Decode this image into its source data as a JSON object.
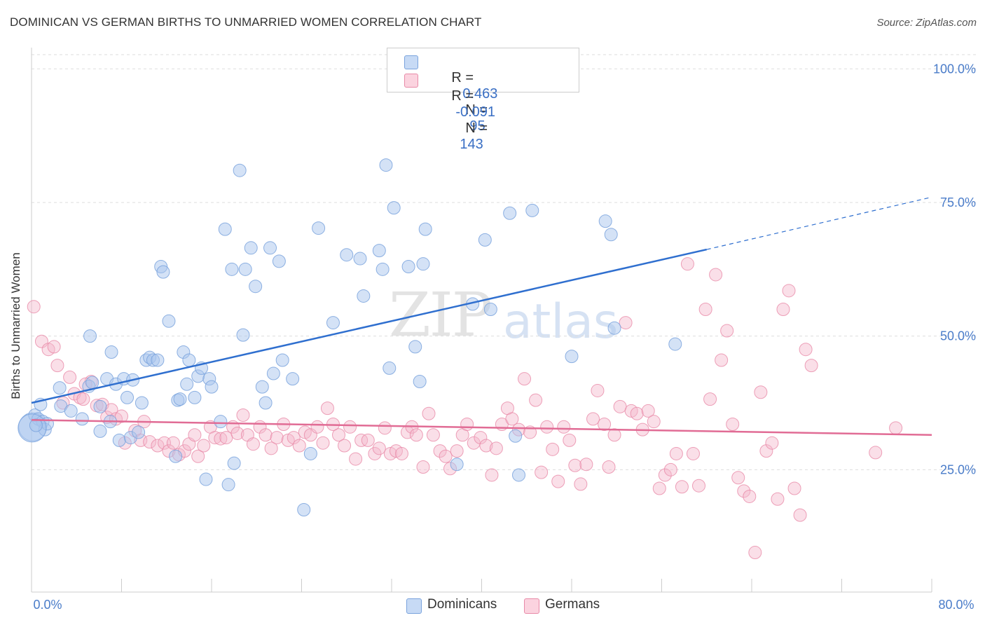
{
  "title": "DOMINICAN VS GERMAN BIRTHS TO UNMARRIED WOMEN CORRELATION CHART",
  "source": "Source: ZipAtlas.com",
  "watermark": {
    "zip": "ZIP",
    "atlas": "atlas"
  },
  "legend": {
    "rows": [
      {
        "r_label": "R =",
        "r_value": "0.463",
        "n_label": "N =",
        "n_value": "95",
        "color": "#a9c6ee"
      },
      {
        "r_label": "R =",
        "r_value": "-0.091",
        "n_label": "N =",
        "n_value": "143",
        "color": "#f5b8cb"
      }
    ]
  },
  "bottom_legend": [
    {
      "label": "Dominicans",
      "color": "#a9c6ee"
    },
    {
      "label": "Germans",
      "color": "#f5b8cb"
    }
  ],
  "chart_data": {
    "type": "scatter",
    "title": "DOMINICAN VS GERMAN BIRTHS TO UNMARRIED WOMEN CORRELATION CHART",
    "ylabel": "Births to Unmarried Women",
    "xlabel": "",
    "xlim": [
      0,
      80
    ],
    "ylim": [
      0,
      100
    ],
    "x_tick_labels": [
      "0.0%",
      "80.0%"
    ],
    "y_tick_labels": [
      "25.0%",
      "50.0%",
      "75.0%",
      "100.0%"
    ],
    "y_ticks": [
      25,
      50,
      75,
      100
    ],
    "grid": true,
    "legend_placement": "top-center",
    "series": [
      {
        "name": "Dominicans",
        "color": "#a9c6ee",
        "edge": "#7aa3dd",
        "trend": {
          "x": [
            0,
            60
          ],
          "y": [
            37.5,
            66.2
          ],
          "dash_to": [
            80,
            76
          ]
        },
        "points": [
          [
            0.1,
            33.0
          ],
          [
            0.3,
            35.2
          ],
          [
            0.6,
            34.5
          ],
          [
            0.8,
            37.2
          ],
          [
            1.0,
            34.0
          ],
          [
            1.2,
            32.5
          ],
          [
            1.4,
            33.6
          ],
          [
            2.6,
            36.9
          ],
          [
            2.5,
            40.3
          ],
          [
            3.5,
            36.0
          ],
          [
            4.5,
            34.5
          ],
          [
            5.2,
            50.0
          ],
          [
            5.1,
            40.6
          ],
          [
            5.4,
            41.3
          ],
          [
            6.1,
            36.8
          ],
          [
            6.1,
            32.2
          ],
          [
            6.7,
            42.0
          ],
          [
            7.0,
            34.0
          ],
          [
            7.1,
            47.0
          ],
          [
            7.5,
            41.0
          ],
          [
            7.8,
            30.5
          ],
          [
            8.2,
            42.0
          ],
          [
            8.5,
            38.5
          ],
          [
            8.8,
            31.0
          ],
          [
            9.0,
            41.8
          ],
          [
            9.5,
            32.0
          ],
          [
            9.8,
            37.5
          ],
          [
            10.2,
            45.5
          ],
          [
            10.5,
            46.0
          ],
          [
            10.8,
            45.5
          ],
          [
            11.2,
            45.5
          ],
          [
            11.5,
            63.0
          ],
          [
            11.7,
            62.0
          ],
          [
            12.2,
            52.8
          ],
          [
            12.8,
            27.5
          ],
          [
            13.0,
            38.0
          ],
          [
            13.2,
            38.2
          ],
          [
            13.5,
            47.0
          ],
          [
            13.8,
            41.0
          ],
          [
            14.0,
            45.5
          ],
          [
            14.5,
            38.5
          ],
          [
            14.8,
            42.5
          ],
          [
            15.1,
            44.0
          ],
          [
            15.5,
            23.2
          ],
          [
            15.8,
            42.0
          ],
          [
            16.0,
            40.5
          ],
          [
            16.8,
            34.0
          ],
          [
            17.2,
            70.0
          ],
          [
            17.5,
            22.2
          ],
          [
            17.8,
            62.5
          ],
          [
            18.0,
            26.2
          ],
          [
            18.5,
            81.0
          ],
          [
            18.8,
            50.2
          ],
          [
            19.0,
            62.5
          ],
          [
            19.5,
            66.5
          ],
          [
            19.9,
            59.3
          ],
          [
            20.5,
            40.5
          ],
          [
            20.8,
            37.5
          ],
          [
            21.2,
            66.5
          ],
          [
            21.5,
            43.0
          ],
          [
            22.0,
            64.0
          ],
          [
            22.3,
            45.5
          ],
          [
            23.2,
            42.0
          ],
          [
            24.2,
            17.5
          ],
          [
            24.8,
            28.0
          ],
          [
            25.5,
            70.2
          ],
          [
            26.8,
            52.5
          ],
          [
            28.0,
            65.2
          ],
          [
            29.2,
            64.5
          ],
          [
            29.5,
            57.5
          ],
          [
            30.9,
            66.0
          ],
          [
            31.2,
            62.5
          ],
          [
            31.5,
            82.0
          ],
          [
            31.8,
            44.0
          ],
          [
            32.2,
            74.0
          ],
          [
            33.5,
            63.0
          ],
          [
            34.1,
            48.0
          ],
          [
            34.5,
            41.5
          ],
          [
            34.8,
            63.5
          ],
          [
            35.0,
            70.0
          ],
          [
            37.8,
            26.0
          ],
          [
            39.2,
            56.0
          ],
          [
            40.3,
            68.0
          ],
          [
            40.8,
            55.0
          ],
          [
            42.5,
            73.0
          ],
          [
            43.0,
            31.3
          ],
          [
            43.3,
            24.0
          ],
          [
            44.5,
            73.5
          ],
          [
            48.0,
            46.2
          ],
          [
            51.0,
            71.5
          ],
          [
            51.5,
            69.0
          ],
          [
            51.8,
            51.5
          ],
          [
            57.2,
            48.5
          ],
          [
            0.05,
            32.8
          ],
          [
            0.4,
            33.3
          ]
        ]
      },
      {
        "name": "Germans",
        "color": "#f5b8cb",
        "edge": "#e88aa8",
        "trend": {
          "x": [
            0,
            80
          ],
          "y": [
            34.3,
            31.5
          ]
        },
        "points": [
          [
            0.2,
            55.5
          ],
          [
            0.9,
            49.0
          ],
          [
            1.5,
            47.5
          ],
          [
            2.0,
            48.0
          ],
          [
            2.3,
            44.5
          ],
          [
            2.8,
            37.5
          ],
          [
            3.4,
            42.3
          ],
          [
            3.8,
            39.2
          ],
          [
            4.3,
            38.5
          ],
          [
            4.6,
            38.2
          ],
          [
            5.3,
            41.5
          ],
          [
            5.8,
            37.0
          ],
          [
            6.3,
            37.2
          ],
          [
            6.7,
            34.8
          ],
          [
            7.1,
            36.2
          ],
          [
            7.5,
            34.5
          ],
          [
            8.0,
            35.0
          ],
          [
            8.3,
            30.0
          ],
          [
            9.2,
            32.3
          ],
          [
            9.7,
            30.5
          ],
          [
            10.0,
            34.0
          ],
          [
            10.5,
            30.2
          ],
          [
            11.2,
            29.5
          ],
          [
            11.8,
            30.0
          ],
          [
            12.2,
            28.5
          ],
          [
            12.6,
            30.0
          ],
          [
            13.1,
            27.8
          ],
          [
            13.6,
            28.5
          ],
          [
            14.0,
            29.8
          ],
          [
            14.5,
            31.5
          ],
          [
            14.8,
            27.5
          ],
          [
            15.3,
            29.5
          ],
          [
            15.9,
            33.0
          ],
          [
            16.3,
            31.0
          ],
          [
            16.8,
            30.8
          ],
          [
            17.3,
            31.0
          ],
          [
            17.9,
            33.0
          ],
          [
            18.3,
            31.8
          ],
          [
            18.8,
            35.2
          ],
          [
            19.2,
            31.5
          ],
          [
            19.7,
            29.8
          ],
          [
            20.3,
            33.0
          ],
          [
            20.8,
            31.5
          ],
          [
            21.3,
            29.0
          ],
          [
            21.8,
            31.0
          ],
          [
            22.4,
            33.5
          ],
          [
            22.8,
            30.5
          ],
          [
            23.3,
            31.0
          ],
          [
            23.8,
            29.5
          ],
          [
            24.3,
            32.0
          ],
          [
            24.8,
            31.5
          ],
          [
            25.4,
            33.0
          ],
          [
            25.9,
            30.0
          ],
          [
            26.3,
            36.5
          ],
          [
            26.8,
            33.5
          ],
          [
            27.3,
            31.5
          ],
          [
            27.8,
            29.5
          ],
          [
            28.3,
            33.0
          ],
          [
            28.8,
            27.0
          ],
          [
            29.3,
            30.5
          ],
          [
            29.9,
            30.5
          ],
          [
            30.5,
            28.0
          ],
          [
            30.9,
            29.0
          ],
          [
            31.4,
            32.8
          ],
          [
            31.9,
            28.0
          ],
          [
            32.4,
            28.5
          ],
          [
            32.9,
            28.0
          ],
          [
            33.4,
            32.0
          ],
          [
            33.8,
            33.0
          ],
          [
            34.2,
            31.5
          ],
          [
            34.8,
            25.5
          ],
          [
            35.3,
            35.5
          ],
          [
            35.7,
            31.5
          ],
          [
            36.3,
            28.5
          ],
          [
            36.8,
            27.5
          ],
          [
            37.2,
            25.2
          ],
          [
            37.8,
            28.5
          ],
          [
            38.3,
            31.5
          ],
          [
            38.7,
            33.5
          ],
          [
            39.3,
            30.0
          ],
          [
            39.9,
            31.0
          ],
          [
            40.4,
            29.5
          ],
          [
            40.9,
            24.0
          ],
          [
            41.3,
            29.0
          ],
          [
            41.8,
            33.5
          ],
          [
            42.3,
            36.5
          ],
          [
            42.7,
            34.5
          ],
          [
            43.3,
            32.5
          ],
          [
            43.8,
            42.0
          ],
          [
            44.3,
            32.0
          ],
          [
            44.8,
            38.0
          ],
          [
            45.3,
            24.5
          ],
          [
            45.8,
            33.0
          ],
          [
            46.3,
            28.8
          ],
          [
            46.8,
            22.8
          ],
          [
            47.3,
            33.0
          ],
          [
            47.8,
            30.5
          ],
          [
            48.3,
            25.8
          ],
          [
            48.8,
            22.3
          ],
          [
            49.3,
            26.0
          ],
          [
            49.9,
            34.5
          ],
          [
            50.3,
            39.8
          ],
          [
            50.9,
            33.5
          ],
          [
            51.3,
            25.5
          ],
          [
            51.8,
            31.5
          ],
          [
            52.3,
            36.8
          ],
          [
            52.8,
            52.5
          ],
          [
            53.3,
            36.0
          ],
          [
            53.8,
            35.5
          ],
          [
            54.3,
            32.5
          ],
          [
            54.8,
            36.0
          ],
          [
            55.3,
            34.0
          ],
          [
            55.8,
            21.5
          ],
          [
            56.3,
            24.0
          ],
          [
            56.8,
            25.0
          ],
          [
            57.3,
            28.0
          ],
          [
            57.8,
            21.8
          ],
          [
            58.3,
            63.5
          ],
          [
            58.8,
            28.0
          ],
          [
            59.3,
            22.0
          ],
          [
            59.9,
            55.0
          ],
          [
            60.3,
            38.2
          ],
          [
            60.8,
            61.5
          ],
          [
            61.3,
            45.5
          ],
          [
            61.8,
            51.0
          ],
          [
            62.3,
            33.5
          ],
          [
            62.8,
            23.5
          ],
          [
            63.3,
            21.0
          ],
          [
            63.8,
            20.0
          ],
          [
            64.3,
            9.5
          ],
          [
            64.8,
            39.5
          ],
          [
            65.3,
            28.5
          ],
          [
            65.8,
            30.0
          ],
          [
            66.3,
            19.5
          ],
          [
            66.8,
            55.0
          ],
          [
            67.3,
            58.5
          ],
          [
            67.8,
            21.5
          ],
          [
            68.3,
            16.5
          ],
          [
            68.8,
            47.5
          ],
          [
            69.3,
            44.5
          ],
          [
            75.0,
            28.2
          ],
          [
            76.8,
            32.8
          ],
          [
            4.8,
            41.0
          ]
        ]
      }
    ]
  }
}
